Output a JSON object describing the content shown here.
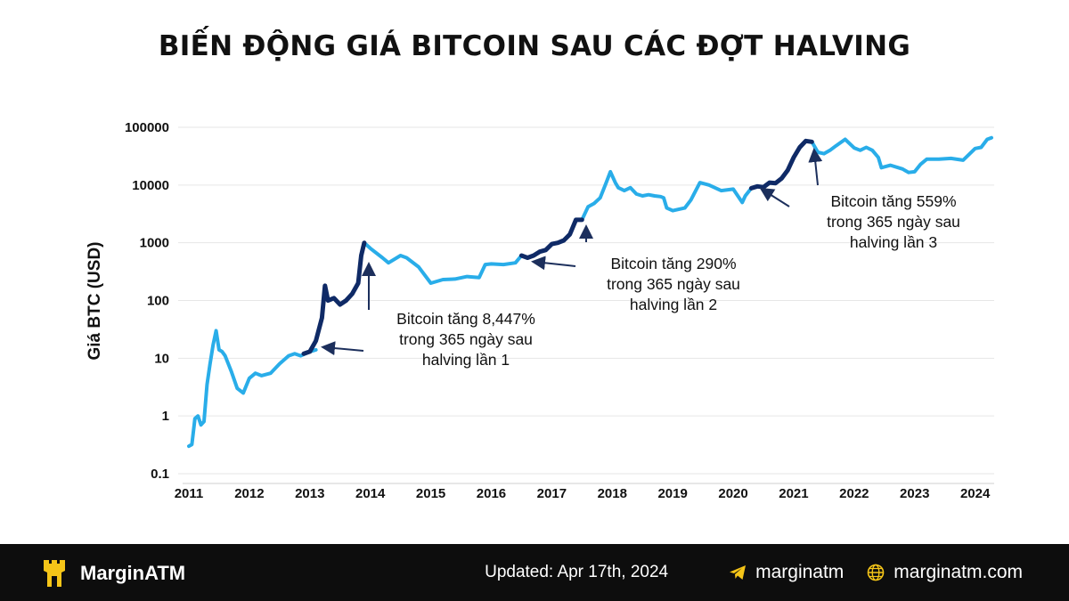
{
  "title": "BIẾN ĐỘNG GIÁ BITCOIN SAU CÁC ĐỢT HALVING",
  "colors": {
    "normal_line": "#29ade9",
    "halving_line": "#0f2a66",
    "arrow": "#1c2f5c",
    "footer_bg": "#0d0d0d",
    "logo": "#f5c518"
  },
  "chart_data": {
    "type": "line",
    "title": "BIẾN ĐỘNG GIÁ BITCOIN SAU CÁC ĐỢT HALVING",
    "xlabel": "",
    "ylabel": "Giá BTC (USD)",
    "y_scale": "log",
    "ylim": [
      0.1,
      100000
    ],
    "xlim": [
      2011.0,
      2024.3
    ],
    "x_ticks": [
      2011,
      2012,
      2013,
      2014,
      2015,
      2016,
      2017,
      2018,
      2019,
      2020,
      2021,
      2022,
      2023,
      2024
    ],
    "x_tick_labels": [
      "2011",
      "2012",
      "2013",
      "2014",
      "2015",
      "2016",
      "2017",
      "2018",
      "2019",
      "2020",
      "2021",
      "2022",
      "2023",
      "2024"
    ],
    "y_ticks": [
      0.1,
      1,
      10,
      100,
      1000,
      10000,
      100000
    ],
    "y_tick_labels": [
      "0.1",
      "1",
      "10",
      "100",
      "1000",
      "10000",
      "100000"
    ],
    "grid": "horizontal",
    "series": [
      {
        "color": "#29ade9",
        "x": [
          2011.0,
          2011.05,
          2011.1,
          2011.15,
          2011.2,
          2011.25,
          2011.3,
          2011.35,
          2011.4,
          2011.45,
          2011.5,
          2011.55,
          2011.6,
          2011.7,
          2011.8,
          2011.9,
          2012.0,
          2012.1,
          2012.2,
          2012.35,
          2012.5,
          2012.65,
          2012.75,
          2012.85,
          2013.0,
          2013.1
        ],
        "y": [
          0.3,
          0.32,
          0.9,
          1.0,
          0.7,
          0.8,
          3.5,
          8,
          17,
          30,
          14,
          13,
          11,
          6,
          3,
          2.5,
          4.5,
          5.5,
          5,
          5.5,
          8,
          11,
          12,
          11,
          13,
          14
        ]
      },
      {
        "color": "#0f2a66",
        "x": [
          2012.9,
          2013.0,
          2013.1,
          2013.2,
          2013.25,
          2013.3,
          2013.4,
          2013.5,
          2013.6,
          2013.7,
          2013.8,
          2013.85,
          2013.9
        ],
        "y": [
          12,
          13,
          20,
          50,
          180,
          100,
          110,
          85,
          100,
          130,
          200,
          600,
          1000
        ]
      },
      {
        "color": "#29ade9",
        "x": [
          2013.9,
          2014.0,
          2014.2,
          2014.3,
          2014.5,
          2014.6,
          2014.8,
          2015.0,
          2015.2,
          2015.4,
          2015.6,
          2015.8,
          2015.9,
          2016.0,
          2016.2,
          2016.4,
          2016.5
        ],
        "y": [
          1000,
          800,
          550,
          450,
          600,
          550,
          380,
          200,
          230,
          235,
          260,
          250,
          420,
          430,
          420,
          450,
          600
        ]
      },
      {
        "color": "#0f2a66",
        "x": [
          2016.5,
          2016.6,
          2016.7,
          2016.8,
          2016.9,
          2017.0,
          2017.1,
          2017.2,
          2017.3,
          2017.4,
          2017.5
        ],
        "y": [
          600,
          550,
          600,
          700,
          750,
          950,
          1000,
          1100,
          1400,
          2500,
          2500
        ]
      },
      {
        "color": "#29ade9",
        "x": [
          2017.5,
          2017.6,
          2017.7,
          2017.8,
          2017.9,
          2017.97,
          2018.05,
          2018.1,
          2018.2,
          2018.3,
          2018.4,
          2018.5,
          2018.6,
          2018.7,
          2018.8,
          2018.85,
          2018.9,
          2019.0,
          2019.1,
          2019.2,
          2019.3,
          2019.45,
          2019.6,
          2019.8,
          2020.0,
          2020.15,
          2020.2,
          2020.3
        ],
        "y": [
          2500,
          4200,
          4800,
          6000,
          11000,
          17000,
          11000,
          9000,
          8000,
          9000,
          7000,
          6500,
          6800,
          6500,
          6300,
          6000,
          4000,
          3600,
          3800,
          4000,
          5500,
          11000,
          10000,
          8000,
          8500,
          5000,
          6500,
          8800
        ]
      },
      {
        "color": "#0f2a66",
        "x": [
          2020.3,
          2020.4,
          2020.5,
          2020.6,
          2020.7,
          2020.8,
          2020.9,
          2021.0,
          2021.1,
          2021.2,
          2021.3
        ],
        "y": [
          8800,
          9500,
          9200,
          11000,
          10800,
          13000,
          18000,
          30000,
          45000,
          58000,
          56000
        ]
      },
      {
        "color": "#29ade9",
        "x": [
          2021.3,
          2021.4,
          2021.5,
          2021.6,
          2021.7,
          2021.85,
          2022.0,
          2022.1,
          2022.2,
          2022.3,
          2022.4,
          2022.45,
          2022.6,
          2022.8,
          2022.9,
          2023.0,
          2023.1,
          2023.2,
          2023.4,
          2023.6,
          2023.8,
          2024.0,
          2024.1,
          2024.2,
          2024.27
        ],
        "y": [
          56000,
          37000,
          35000,
          40000,
          48000,
          62000,
          44000,
          40000,
          45000,
          40000,
          30000,
          20000,
          22000,
          19000,
          16500,
          17000,
          23000,
          28000,
          28000,
          29000,
          27000,
          43000,
          45000,
          62000,
          66000
        ]
      }
    ],
    "annotations": [
      {
        "lines": [
          "Bitcoin tăng 8,447%",
          "trong 365 ngày sau",
          "halving lần 1"
        ],
        "target_x": 2013.25,
        "target_y": 14
      },
      {
        "lines": [
          "Bitcoin tăng 290%",
          "trong 365 ngày sau",
          "halving lần 2"
        ],
        "target_x": 2016.65,
        "target_y": 560
      },
      {
        "lines": [
          "Bitcoin tăng 559%",
          "trong 365 ngày sau",
          "halving lần 3"
        ],
        "target_x": 2020.4,
        "target_y": 9000
      }
    ]
  },
  "footer": {
    "brand": "MarginATM",
    "updated": "Updated: Apr 17th, 2024",
    "telegram": "marginatm",
    "website": "marginatm.com"
  }
}
